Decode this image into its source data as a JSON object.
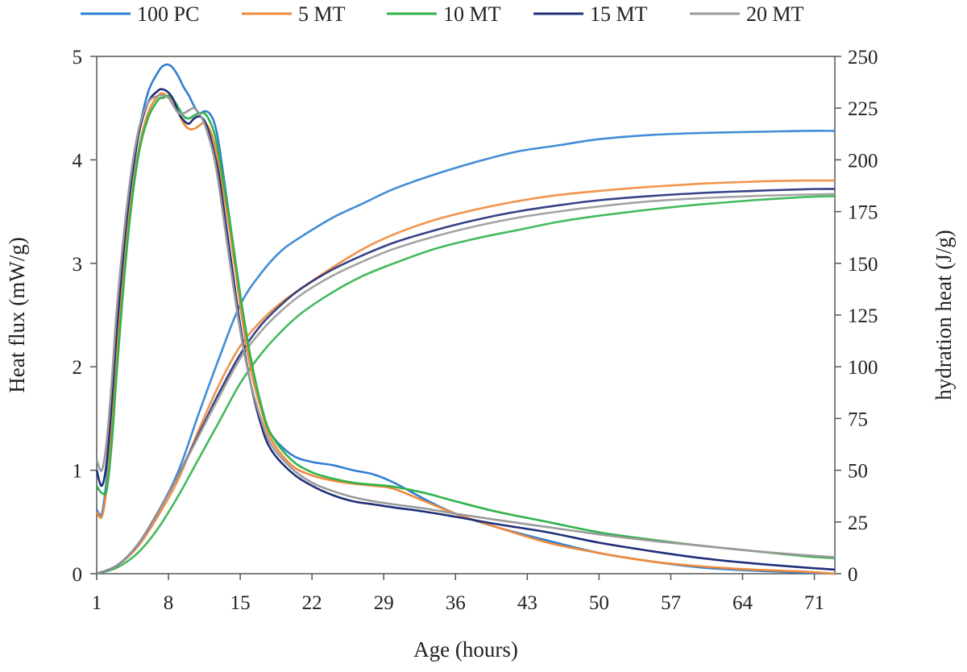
{
  "chart_data": {
    "type": "line",
    "xlabel": "Age (hours)",
    "ylabel_left": "Heat flux (mW/g)",
    "ylabel_right": "hydration heat (J/g)",
    "xlim": [
      1,
      73
    ],
    "ylim_left": [
      0,
      5
    ],
    "ylim_right": [
      0,
      250
    ],
    "x_ticks": [
      1,
      8,
      15,
      22,
      29,
      36,
      43,
      50,
      57,
      64,
      71
    ],
    "y_ticks_left": [
      0,
      1,
      2,
      3,
      4,
      5
    ],
    "y_ticks_right": [
      0,
      25,
      50,
      75,
      100,
      125,
      150,
      175,
      200,
      225,
      250
    ],
    "legend_position": "top",
    "grid": false,
    "series": [
      {
        "name": "100 PC",
        "color": "#2f7fd1",
        "heat_flux": {
          "x": [
            1,
            1.5,
            2,
            2.5,
            3,
            4,
            5,
            6,
            7,
            7.5,
            8,
            8.5,
            9,
            9.5,
            10,
            10.5,
            11,
            11.5,
            12,
            12.5,
            13,
            14,
            15,
            16,
            17,
            18,
            20,
            22,
            24,
            26,
            28,
            30,
            33,
            36,
            40,
            45,
            50,
            55,
            60,
            65,
            70,
            73
          ],
          "y": [
            0.62,
            0.58,
            0.95,
            1.6,
            2.3,
            3.4,
            4.2,
            4.65,
            4.85,
            4.91,
            4.92,
            4.88,
            4.8,
            4.7,
            4.62,
            4.52,
            4.45,
            4.47,
            4.45,
            4.35,
            4.1,
            3.4,
            2.6,
            2.0,
            1.6,
            1.35,
            1.15,
            1.08,
            1.05,
            1.0,
            0.96,
            0.88,
            0.72,
            0.58,
            0.45,
            0.32,
            0.2,
            0.12,
            0.06,
            0.03,
            0.01,
            0.0
          ]
        },
        "hydration_heat": {
          "x": [
            1,
            3,
            5,
            7,
            9,
            11,
            13,
            15,
            17,
            19,
            21,
            24,
            27,
            30,
            34,
            38,
            42,
            46,
            50,
            55,
            60,
            65,
            70,
            73
          ],
          "y": [
            0,
            4,
            14,
            30,
            50,
            78,
            105,
            130,
            145,
            156,
            163,
            172,
            179,
            186,
            193,
            199,
            204,
            207,
            210,
            212,
            213,
            213.5,
            214,
            214
          ]
        }
      },
      {
        "name": "5 MT",
        "color": "#ee8a3c",
        "heat_flux": {
          "x": [
            1,
            1.5,
            2,
            2.5,
            3,
            4,
            5,
            6,
            7,
            7.5,
            8,
            8.5,
            9,
            9.5,
            10,
            10.5,
            11,
            11.5,
            12,
            12.5,
            13,
            14,
            15,
            16,
            17,
            18,
            20,
            22,
            24,
            26,
            28,
            30,
            33,
            36,
            40,
            45,
            50,
            55,
            60,
            65,
            70,
            73
          ],
          "y": [
            0.6,
            0.55,
            0.85,
            1.45,
            2.2,
            3.3,
            4.05,
            4.45,
            4.62,
            4.64,
            4.6,
            4.55,
            4.45,
            4.35,
            4.3,
            4.3,
            4.33,
            4.36,
            4.3,
            4.15,
            3.9,
            3.3,
            2.6,
            2.0,
            1.6,
            1.3,
            1.05,
            0.95,
            0.9,
            0.87,
            0.85,
            0.82,
            0.7,
            0.58,
            0.45,
            0.3,
            0.2,
            0.12,
            0.07,
            0.04,
            0.02,
            0.0
          ]
        },
        "hydration_heat": {
          "x": [
            1,
            3,
            5,
            7,
            9,
            11,
            13,
            15,
            17,
            19,
            21,
            24,
            27,
            30,
            34,
            38,
            42,
            46,
            50,
            55,
            60,
            65,
            70,
            73
          ],
          "y": [
            0,
            4,
            13,
            28,
            46,
            70,
            92,
            110,
            122,
            131,
            138,
            148,
            157,
            164,
            171,
            176,
            180,
            183,
            185,
            187,
            188.5,
            189.5,
            190,
            190
          ]
        }
      },
      {
        "name": "10 MT",
        "color": "#2fb34a",
        "heat_flux": {
          "x": [
            1,
            1.5,
            2,
            2.5,
            3,
            4,
            5,
            6,
            7,
            7.5,
            8,
            8.5,
            9,
            9.5,
            10,
            10.5,
            11,
            11.5,
            12,
            12.5,
            13,
            14,
            15,
            16,
            17,
            18,
            20,
            22,
            24,
            26,
            28,
            30,
            33,
            36,
            40,
            45,
            50,
            55,
            60,
            65,
            70,
            73
          ],
          "y": [
            0.85,
            0.78,
            0.82,
            1.3,
            2.0,
            3.2,
            4.0,
            4.4,
            4.58,
            4.6,
            4.62,
            4.58,
            4.5,
            4.42,
            4.4,
            4.43,
            4.45,
            4.45,
            4.38,
            4.25,
            4.0,
            3.4,
            2.7,
            2.1,
            1.65,
            1.35,
            1.1,
            0.98,
            0.92,
            0.88,
            0.86,
            0.84,
            0.78,
            0.7,
            0.6,
            0.5,
            0.4,
            0.33,
            0.27,
            0.22,
            0.17,
            0.15
          ]
        },
        "hydration_heat": {
          "x": [
            1,
            3,
            5,
            7,
            9,
            11,
            13,
            15,
            17,
            19,
            21,
            24,
            27,
            30,
            34,
            38,
            42,
            46,
            50,
            55,
            60,
            65,
            70,
            73
          ],
          "y": [
            0,
            3,
            10,
            22,
            38,
            56,
            74,
            92,
            106,
            117,
            126,
            136,
            144,
            150,
            157,
            162,
            166,
            170,
            173,
            176,
            178.5,
            180.5,
            182,
            182.5
          ]
        }
      },
      {
        "name": "15 MT",
        "color": "#1f2f7a",
        "heat_flux": {
          "x": [
            1,
            1.5,
            2,
            2.5,
            3,
            4,
            5,
            6,
            7,
            7.5,
            8,
            8.5,
            9,
            9.5,
            10,
            10.5,
            11,
            11.5,
            12,
            12.5,
            13,
            14,
            15,
            16,
            17,
            18,
            20,
            22,
            24,
            26,
            28,
            30,
            33,
            36,
            40,
            45,
            50,
            55,
            60,
            65,
            70,
            73
          ],
          "y": [
            1.0,
            0.85,
            1.1,
            1.7,
            2.4,
            3.5,
            4.2,
            4.55,
            4.67,
            4.68,
            4.65,
            4.58,
            4.45,
            4.38,
            4.35,
            4.4,
            4.42,
            4.38,
            4.25,
            4.05,
            3.8,
            3.1,
            2.4,
            1.85,
            1.45,
            1.2,
            0.98,
            0.85,
            0.76,
            0.7,
            0.67,
            0.64,
            0.6,
            0.55,
            0.48,
            0.4,
            0.3,
            0.22,
            0.15,
            0.1,
            0.06,
            0.04
          ]
        },
        "hydration_heat": {
          "x": [
            1,
            3,
            5,
            7,
            9,
            11,
            13,
            15,
            17,
            19,
            21,
            24,
            27,
            30,
            34,
            38,
            42,
            46,
            50,
            55,
            60,
            65,
            70,
            73
          ],
          "y": [
            0,
            4,
            14,
            30,
            48,
            68,
            88,
            106,
            120,
            130,
            138,
            147,
            154,
            160,
            166,
            171,
            175,
            178,
            180.5,
            182.5,
            184,
            185,
            185.8,
            186
          ]
        }
      },
      {
        "name": "20 MT",
        "color": "#9a9a9a",
        "heat_flux": {
          "x": [
            1,
            1.5,
            2,
            2.5,
            3,
            4,
            5,
            6,
            7,
            7.5,
            8,
            8.5,
            9,
            9.5,
            10,
            10.5,
            11,
            11.5,
            12,
            12.5,
            13,
            14,
            15,
            16,
            17,
            18,
            20,
            22,
            24,
            26,
            28,
            30,
            33,
            36,
            40,
            45,
            50,
            55,
            60,
            65,
            70,
            73
          ],
          "y": [
            1.1,
            1.0,
            1.3,
            1.9,
            2.6,
            3.6,
            4.25,
            4.55,
            4.62,
            4.62,
            4.6,
            4.52,
            4.45,
            4.45,
            4.48,
            4.5,
            4.45,
            4.35,
            4.2,
            4.0,
            3.7,
            3.0,
            2.35,
            1.85,
            1.5,
            1.25,
            1.02,
            0.88,
            0.8,
            0.74,
            0.7,
            0.67,
            0.63,
            0.58,
            0.52,
            0.45,
            0.38,
            0.32,
            0.27,
            0.22,
            0.18,
            0.16
          ]
        },
        "hydration_heat": {
          "x": [
            1,
            3,
            5,
            7,
            9,
            11,
            13,
            15,
            17,
            19,
            21,
            24,
            27,
            30,
            34,
            38,
            42,
            46,
            50,
            55,
            60,
            65,
            70,
            73
          ],
          "y": [
            0,
            4,
            14,
            30,
            48,
            67,
            86,
            104,
            117,
            127,
            135,
            144,
            151,
            157,
            163,
            168,
            172,
            175,
            177.5,
            180,
            181.5,
            182.5,
            183.2,
            183.5
          ]
        }
      }
    ]
  }
}
